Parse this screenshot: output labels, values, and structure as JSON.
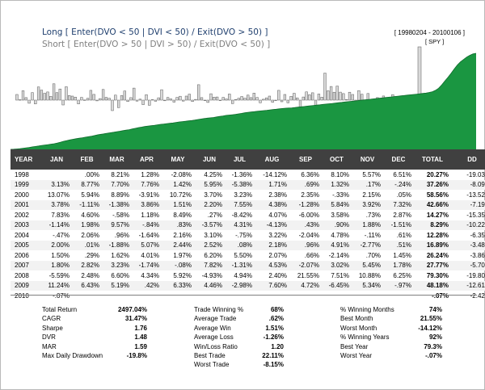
{
  "legend": {
    "long": "Long [ Enter(DVO < 50 | DVI < 50) / Exit(DVO > 50) ]",
    "short": "Short [ Enter(DVO > 50 | DVI > 50) / Exit(DVO < 50) ]",
    "long_color": "#1f3f6e",
    "short_color": "#7f7f7f"
  },
  "date_range": "[ 19980204 - 20100106 ]",
  "symbol": "[ SPY ]",
  "colors": {
    "equity_fill": "#1a9641",
    "equity_dark": "#0f6b2c",
    "bar_fill": "#d9d9d9",
    "bar_stroke": "#595959",
    "header_bg": "#404040"
  },
  "chart_data": [
    {
      "type": "area",
      "series": [
        {
          "values": [
            0,
            0.05,
            0.12,
            0.18,
            0.3,
            0.42,
            0.55,
            0.72,
            0.85,
            1.0,
            1.15,
            1.28,
            1.4,
            1.52,
            1.65,
            1.85,
            2.1,
            2.35,
            2.55,
            2.75,
            2.95,
            3.1,
            3.25,
            3.4,
            3.55,
            3.7,
            3.85,
            4.05,
            4.25,
            4.4,
            4.55,
            4.7,
            4.85,
            5.0,
            5.15,
            5.3,
            5.45,
            5.6,
            5.75,
            5.95,
            6.15,
            6.35,
            6.5,
            6.65,
            6.8,
            6.9,
            7.0,
            7.15,
            7.3,
            7.4,
            7.5,
            7.6,
            7.7,
            7.85,
            8.0,
            8.1,
            8.2,
            8.3,
            8.4,
            8.55,
            8.7,
            8.85,
            9.0,
            9.1,
            9.2,
            9.3,
            9.45,
            9.6,
            9.75,
            9.9,
            10.0,
            10.1,
            10.2,
            10.35,
            10.5,
            10.65,
            10.8,
            10.9,
            11.0,
            11.1,
            11.2,
            11.3,
            11.4,
            11.5,
            11.6,
            11.7,
            11.8,
            11.9,
            12.0,
            12.05,
            12.1,
            12.2,
            12.3,
            12.4,
            12.5,
            12.6,
            12.7,
            12.8,
            12.9,
            13.0,
            13.1,
            13.2,
            13.3,
            13.4,
            13.5,
            13.6,
            13.7,
            13.8,
            13.9,
            14.0,
            14.1,
            14.2,
            14.3,
            14.4,
            14.5,
            14.6,
            14.7,
            14.8,
            14.9,
            15.0,
            15.1,
            15.2,
            15.3,
            15.4,
            15.5,
            15.6,
            15.7,
            15.8,
            15.9,
            16.0,
            16.1,
            16.2,
            16.3,
            16.4,
            16.6,
            16.8,
            17.2,
            17.8,
            18.8,
            19.9,
            21.0,
            22.2,
            23.4,
            24.6,
            25.5,
            26.2,
            26.9,
            27.4,
            27.8,
            28.0
          ]
        }
      ]
    },
    {
      "type": "bar",
      "values": [
        4.5,
        0.3,
        7.5,
        2.0,
        -2.5,
        6.0,
        -3.0,
        10.5,
        8.0,
        5.5,
        6.5,
        3.0,
        13.0,
        6.0,
        8.9,
        -3.9,
        10.7,
        3.7,
        3.2,
        2.4,
        -3.0,
        2.2,
        0.1,
        1.4,
        7.8,
        4.6,
        -0.6,
        1.2,
        8.5,
        2.2,
        1.5,
        -8.4,
        4.0,
        -6.0,
        3.6,
        7.3,
        -1.1,
        2.0,
        9.6,
        -0.8,
        0.8,
        -3.6,
        4.3,
        -4.1,
        0.4,
        -0.9,
        1.9,
        8.3,
        -0.5,
        2.1,
        1.0,
        -1.6,
        2.2,
        3.1,
        -0.8,
        3.2,
        4.8,
        -1.1,
        0.6,
        12.3,
        2.0,
        0.0,
        -1.9,
        5.1,
        2.4,
        2.5,
        -0.1,
        2.2,
        1.0,
        4.9,
        -2.8,
        0.5,
        1.5,
        2.9,
        1.6,
        4.0,
        2.0,
        5.6,
        2.1,
        -2.1,
        0.7,
        1.8,
        3.2,
        -1.7,
        -0.1,
        7.8,
        -1.3,
        4.5,
        -2.1,
        3.0,
        5.5,
        1.8,
        -5.6,
        2.5,
        6.6,
        4.3,
        5.9,
        -4.9,
        4.9,
        2.4,
        21.6,
        7.5,
        10.9,
        6.3,
        11.2,
        6.4,
        5.2,
        0.4,
        6.3,
        4.5,
        -3.0,
        7.6,
        4.7,
        -6.5,
        5.3,
        -1.0,
        -0.1,
        2.0,
        -1.5,
        3.3,
        1.2,
        -2.2,
        4.4,
        0.8,
        1.9,
        -2.9,
        3.6,
        0.9,
        -1.4,
        2.8,
        0.6,
        1.7,
        -0.3,
        3.9,
        1.1,
        -2.7,
        2.2,
        0.7,
        1.4,
        -0.9,
        2.6,
        1.5,
        0.4,
        -1.2,
        3.1,
        0.9,
        -0.5,
        1.6
      ],
      "short_leg_values": [
        -2.0,
        -3.5,
        -1.5,
        -2.8,
        -1.2,
        -4.0,
        -2.2,
        -3.0,
        -1.6,
        -2.5,
        -3.8,
        -1.9,
        -2.7,
        -4.4,
        -2.1,
        -3.3
      ]
    }
  ],
  "table": {
    "headers": [
      "YEAR",
      "JAN",
      "FEB",
      "MAR",
      "APR",
      "MAY",
      "JUN",
      "JUL",
      "AUG",
      "SEP",
      "OCT",
      "NOV",
      "DEC",
      "TOTAL",
      "DD"
    ],
    "rows": [
      [
        "1998",
        "",
        ".00%",
        "8.21%",
        "1.28%",
        "-2.08%",
        "4.25%",
        "-1.36%",
        "-14.12%",
        "6.36%",
        "8.10%",
        "5.57%",
        "6.51%",
        "20.27%",
        "-19.03%"
      ],
      [
        "1999",
        "3.13%",
        "8.77%",
        "7.70%",
        "7.76%",
        "1.42%",
        "5.95%",
        "-5.38%",
        "1.71%",
        ".69%",
        "1.32%",
        ".17%",
        "-.24%",
        "37.26%",
        "-8.09%"
      ],
      [
        "2000",
        "13.07%",
        "5.94%",
        "8.89%",
        "-3.91%",
        "10.72%",
        "3.70%",
        "3.23%",
        "2.38%",
        "2.35%",
        "-.33%",
        "2.15%",
        ".05%",
        "58.56%",
        "-13.52%"
      ],
      [
        "2001",
        "3.78%",
        "-1.11%",
        "-1.38%",
        "3.86%",
        "1.51%",
        "2.20%",
        "7.55%",
        "4.38%",
        "-1.28%",
        "5.84%",
        "3.92%",
        "7.32%",
        "42.66%",
        "-7.19%"
      ],
      [
        "2002",
        "7.83%",
        "4.60%",
        "-.58%",
        "1.18%",
        "8.49%",
        ".27%",
        "-8.42%",
        "4.07%",
        "-6.00%",
        "3.58%",
        ".73%",
        "2.87%",
        "14.27%",
        "-15.35%"
      ],
      [
        "2003",
        "-1.14%",
        "1.98%",
        "9.57%",
        "-.84%",
        ".83%",
        "-3.57%",
        "4.31%",
        "-4.13%",
        ".43%",
        ".90%",
        "1.88%",
        "-1.51%",
        "8.29%",
        "-10.22%"
      ],
      [
        "2004",
        "-.47%",
        "2.06%",
        ".96%",
        "-1.64%",
        "2.16%",
        "3.10%",
        "-.75%",
        "3.22%",
        "-2.04%",
        "4.78%",
        "-.11%",
        ".61%",
        "12.28%",
        "-6.35%"
      ],
      [
        "2005",
        "2.00%",
        ".01%",
        "-1.88%",
        "5.07%",
        "2.44%",
        "2.52%",
        ".08%",
        "2.18%",
        ".96%",
        "4.91%",
        "-2.77%",
        ".51%",
        "16.89%",
        "-3.48%"
      ],
      [
        "2006",
        "1.50%",
        ".29%",
        "1.62%",
        "4.01%",
        "1.97%",
        "6.20%",
        "5.50%",
        "2.07%",
        ".66%",
        "-2.14%",
        ".70%",
        "1.45%",
        "26.24%",
        "-3.86%"
      ],
      [
        "2007",
        "1.80%",
        "2.82%",
        "3.23%",
        "-1.74%",
        "-.08%",
        "7.82%",
        "-1.31%",
        "4.53%",
        "-2.07%",
        "3.02%",
        "5.45%",
        "1.78%",
        "27.77%",
        "-5.70%"
      ],
      [
        "2008",
        "-5.59%",
        "2.48%",
        "6.60%",
        "4.34%",
        "5.92%",
        "-4.93%",
        "4.94%",
        "2.40%",
        "21.55%",
        "7.51%",
        "10.88%",
        "6.25%",
        "79.30%",
        "-19.80%"
      ],
      [
        "2009",
        "11.24%",
        "6.43%",
        "5.19%",
        ".42%",
        "6.33%",
        "4.46%",
        "-2.98%",
        "7.60%",
        "4.72%",
        "-6.45%",
        "5.34%",
        "-.97%",
        "48.18%",
        "-12.61%"
      ],
      [
        "2010",
        "-.07%",
        "",
        "",
        "",
        "",
        "",
        "",
        "",
        "",
        "",
        "",
        "",
        "-.07%",
        "-2.42%"
      ]
    ]
  },
  "stats": {
    "col1": [
      {
        "label": "Total Return",
        "value": "2497.04%"
      },
      {
        "label": "CAGR",
        "value": "31.47%"
      },
      {
        "label": "Sharpe",
        "value": "1.76"
      },
      {
        "label": "DVR",
        "value": "1.48"
      },
      {
        "label": "MAR",
        "value": "1.59"
      },
      {
        "label": "Max Daily Drawdown",
        "value": "-19.8%"
      }
    ],
    "col2": [
      {
        "label": "Trade Winning %",
        "value": "68%"
      },
      {
        "label": "Average Trade",
        "value": ".62%"
      },
      {
        "label": "Average Win",
        "value": "1.51%"
      },
      {
        "label": "Average Loss",
        "value": "-1.26%"
      },
      {
        "label": "Win/Loss Ratio",
        "value": "1.20"
      },
      {
        "label": "Best Trade",
        "value": "22.11%"
      },
      {
        "label": "Worst Trade",
        "value": "-8.15%"
      }
    ],
    "col3": [
      {
        "label": "% Winning Months",
        "value": "74%"
      },
      {
        "label": "Best Month",
        "value": "21.55%"
      },
      {
        "label": "Worst Month",
        "value": "-14.12%"
      },
      {
        "label": "% Winning Years",
        "value": "92%"
      },
      {
        "label": "Best Year",
        "value": "79.3%"
      },
      {
        "label": "Worst Year",
        "value": "-.07%"
      }
    ]
  }
}
